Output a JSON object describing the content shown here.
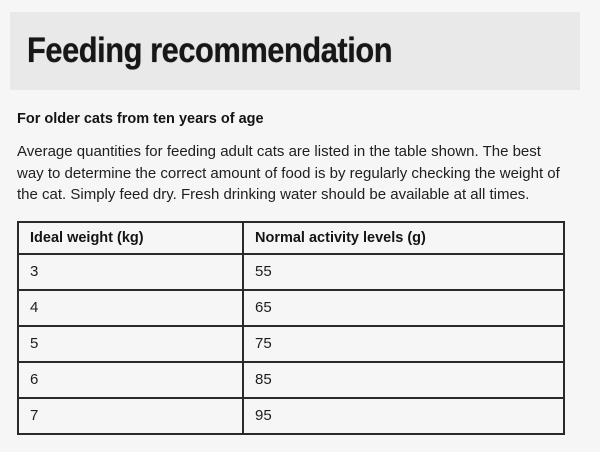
{
  "page": {
    "title": "Feeding recommendation",
    "subtitle": "For older cats from ten years of age",
    "paragraph": "Average quantities for feeding adult cats are listed in the table shown. The best way to determine the correct amount of food is by regularly checking the weight of the cat. Simply feed dry. Fresh drinking water should be available at all times."
  },
  "table": {
    "columns": [
      "Ideal weight (kg)",
      "Normal activity levels (g)"
    ],
    "rows": [
      {
        "weight": "3",
        "amount": "55"
      },
      {
        "weight": "4",
        "amount": "65"
      },
      {
        "weight": "5",
        "amount": "75"
      },
      {
        "weight": "6",
        "amount": "85"
      },
      {
        "weight": "7",
        "amount": "95"
      }
    ]
  },
  "colors": {
    "page_bg": "#f6f6f6",
    "band_bg": "#e9e9e9",
    "text": "#1d1d1d",
    "table_border": "#2a2a2a"
  }
}
